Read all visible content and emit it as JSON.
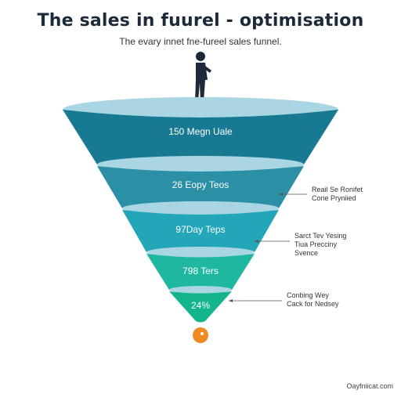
{
  "header": {
    "title": "The  sales in fuurel - optimisation",
    "subtitle": "The evary innet fne-fureel sales funnel."
  },
  "stages": [
    {
      "label": "150 Megn Uale",
      "color": "#177a92"
    },
    {
      "label": "26 Eopy Teos",
      "color": "#2b8fa6"
    },
    {
      "label": "97Day Teps",
      "color": "#22a6b8"
    },
    {
      "label": "798 Ters",
      "color": "#1fb7a0"
    },
    {
      "label": "24%",
      "color": "#14b48c"
    }
  ],
  "callouts": [
    {
      "line1": "Reail Se Ronifet",
      "line2": "Corie Pryniied",
      "line3": ""
    },
    {
      "line1": "Sarct Tev Yesing",
      "line2": "Tiua Precciny",
      "line3": "Svence"
    },
    {
      "line1": "Conbing Wey",
      "line2": "Cack for Nedsey",
      "line3": ""
    }
  ],
  "footer": {
    "text": "Oayfniicat.com"
  },
  "colors": {
    "rim": "#a9d6e2",
    "person": "#1d2a3a",
    "dot": "#f08a24"
  }
}
